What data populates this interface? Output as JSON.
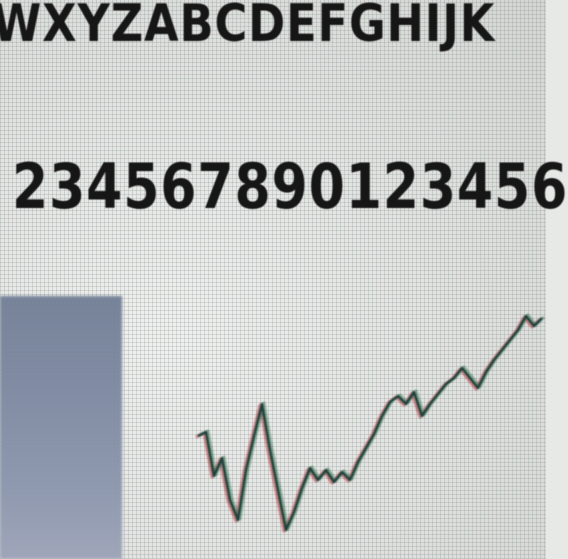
{
  "text": {
    "letters": "WXYZABCDEFGHIJK",
    "digits": "234567890123456"
  },
  "colors": {
    "screen": "#e6e8e6",
    "text": "#161616",
    "thumbnail": "#7c88a0",
    "line_main": "#1f3f3a",
    "line_red": "#b8343a",
    "line_green": "#2f7a52"
  }
}
